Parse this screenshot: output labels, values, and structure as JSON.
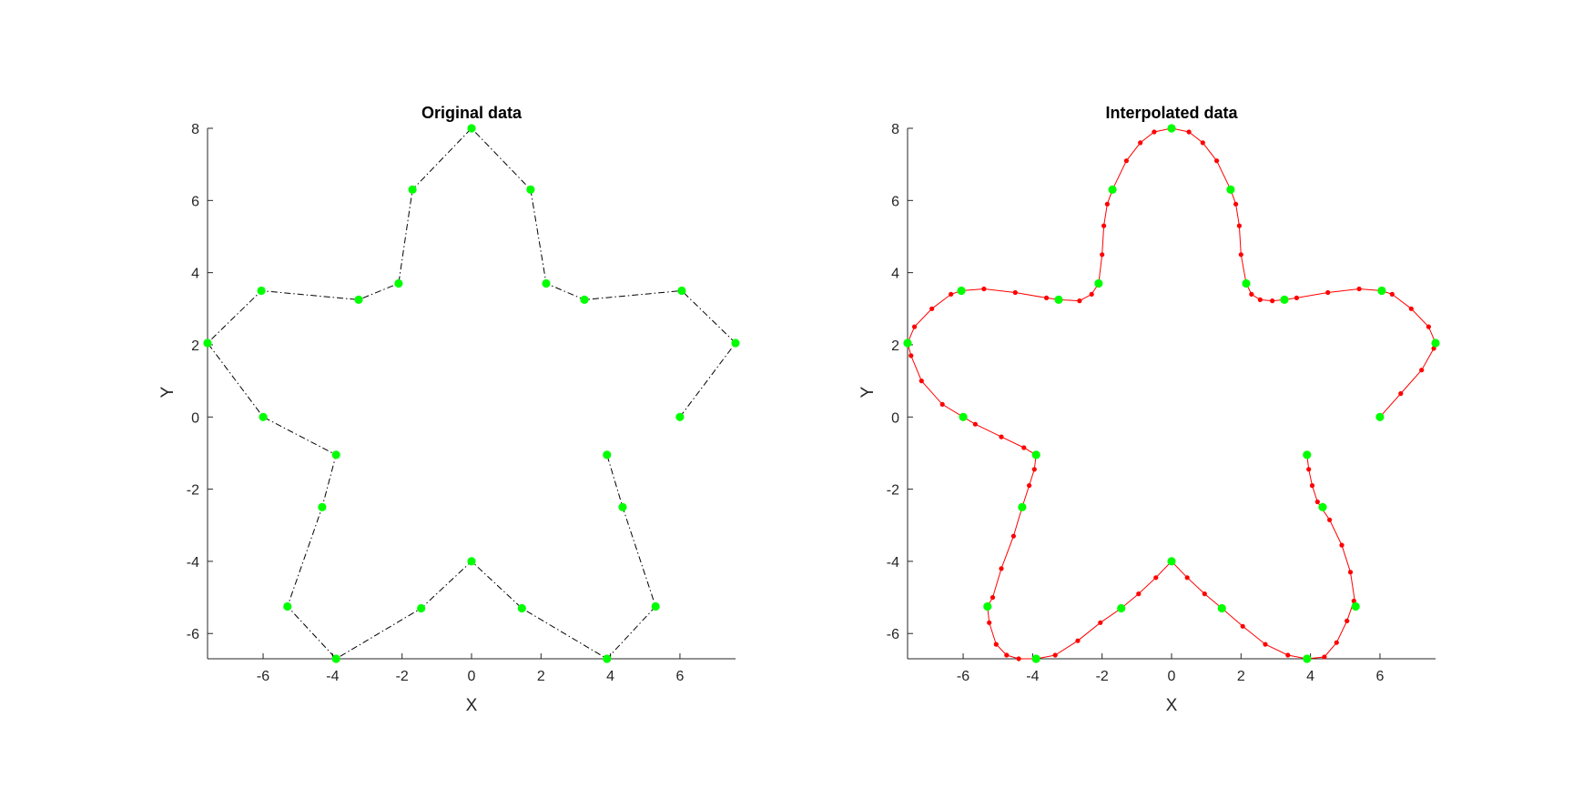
{
  "colors": {
    "marker_green": "#00ff00",
    "dashdot_black": "#000000",
    "interp_red": "#ff0000",
    "axis": "#262626"
  },
  "chart_data": [
    {
      "type": "line",
      "title": "Original data",
      "xlabel": "X",
      "ylabel": "Y",
      "xlim": [
        -7.6,
        7.6
      ],
      "ylim": [
        -6.7,
        8
      ],
      "xticks": [
        "-6",
        "-4",
        "-2",
        "0",
        "2",
        "4",
        "6"
      ],
      "yticks": [
        "-6",
        "-4",
        "-2",
        "0",
        "2",
        "4",
        "6",
        "8"
      ],
      "grid": false,
      "series": [
        {
          "line_style": "dash-dot",
          "line_color": "#000000",
          "marker_color": "#00ff00",
          "x": [
            6.0,
            7.6,
            6.05,
            3.25,
            2.15,
            1.7,
            0.0,
            -1.7,
            -2.1,
            -3.25,
            -6.05,
            -7.6,
            -6.0,
            -3.9,
            -4.3,
            -5.3,
            -3.9,
            -1.45,
            0.0,
            1.45,
            3.9,
            5.3,
            4.35,
            3.9
          ],
          "y": [
            0.0,
            2.05,
            3.5,
            3.25,
            3.7,
            6.3,
            8.0,
            6.3,
            3.7,
            3.25,
            3.5,
            2.05,
            0.0,
            -1.05,
            -2.5,
            -5.25,
            -6.7,
            -5.3,
            -4.0,
            -5.3,
            -6.7,
            -5.25,
            -2.5,
            -1.05
          ]
        }
      ]
    },
    {
      "type": "line",
      "title": "Interpolated data",
      "xlabel": "X",
      "ylabel": "Y",
      "xlim": [
        -7.6,
        7.6
      ],
      "ylim": [
        -6.7,
        8
      ],
      "xticks": [
        "-6",
        "-4",
        "-2",
        "0",
        "2",
        "4",
        "6"
      ],
      "yticks": [
        "-6",
        "-4",
        "-2",
        "0",
        "2",
        "4",
        "6",
        "8"
      ],
      "grid": false,
      "series": [
        {
          "line_style": "solid",
          "line_color": "#ff0000",
          "marker_color": "#ff0000",
          "x": [
            6.0,
            6.6,
            7.2,
            7.55,
            7.6,
            7.4,
            6.9,
            6.35,
            6.05,
            5.4,
            4.5,
            3.6,
            3.25,
            2.9,
            2.55,
            2.3,
            2.15,
            2.0,
            1.95,
            1.85,
            1.7,
            1.3,
            0.9,
            0.5,
            0.0,
            -0.5,
            -0.9,
            -1.3,
            -1.7,
            -1.85,
            -1.95,
            -2.0,
            -2.1,
            -2.3,
            -2.65,
            -3.25,
            -3.6,
            -4.5,
            -5.4,
            -6.05,
            -6.35,
            -6.9,
            -7.4,
            -7.6,
            -7.5,
            -7.2,
            -6.6,
            -6.0,
            -5.65,
            -4.9,
            -4.25,
            -3.9,
            -3.95,
            -4.1,
            -4.3,
            -4.55,
            -4.9,
            -5.15,
            -5.3,
            -5.25,
            -5.05,
            -4.75,
            -4.4,
            -3.9,
            -3.35,
            -2.7,
            -2.05,
            -1.45,
            -0.95,
            -0.45,
            0.0,
            0.45,
            0.95,
            1.45,
            2.05,
            2.7,
            3.35,
            3.9,
            4.4,
            4.75,
            5.05,
            5.25,
            5.3,
            5.15,
            4.9,
            4.55,
            4.3,
            4.2,
            4.05,
            3.95,
            3.9
          ],
          "y": [
            0.0,
            0.65,
            1.3,
            1.9,
            2.05,
            2.5,
            3.0,
            3.4,
            3.5,
            3.55,
            3.45,
            3.3,
            3.25,
            3.22,
            3.25,
            3.4,
            3.7,
            4.5,
            5.3,
            5.9,
            6.3,
            7.1,
            7.6,
            7.9,
            8.0,
            7.9,
            7.6,
            7.1,
            6.3,
            5.9,
            5.3,
            4.5,
            3.7,
            3.4,
            3.22,
            3.25,
            3.3,
            3.45,
            3.55,
            3.5,
            3.4,
            3.0,
            2.5,
            2.05,
            1.7,
            1.0,
            0.35,
            0.0,
            -0.2,
            -0.55,
            -0.85,
            -1.05,
            -1.45,
            -1.9,
            -2.5,
            -3.3,
            -4.2,
            -5.0,
            -5.25,
            -5.7,
            -6.3,
            -6.6,
            -6.7,
            -6.7,
            -6.6,
            -6.2,
            -5.7,
            -5.3,
            -4.9,
            -4.45,
            -4.0,
            -4.45,
            -4.9,
            -5.3,
            -5.8,
            -6.3,
            -6.6,
            -6.7,
            -6.65,
            -6.25,
            -5.65,
            -5.1,
            -5.25,
            -4.3,
            -3.55,
            -2.85,
            -2.5,
            -2.35,
            -1.9,
            -1.45,
            -1.05
          ]
        },
        {
          "line_style": "none",
          "marker_color": "#00ff00",
          "x": [
            6.0,
            7.6,
            6.05,
            3.25,
            2.15,
            1.7,
            0.0,
            -1.7,
            -2.1,
            -3.25,
            -6.05,
            -7.6,
            -6.0,
            -3.9,
            -4.3,
            -5.3,
            -3.9,
            -1.45,
            0.0,
            1.45,
            3.9,
            5.3,
            4.35,
            3.9
          ],
          "y": [
            0.0,
            2.05,
            3.5,
            3.25,
            3.7,
            6.3,
            8.0,
            6.3,
            3.7,
            3.25,
            3.5,
            2.05,
            0.0,
            -1.05,
            -2.5,
            -5.25,
            -6.7,
            -5.3,
            -4.0,
            -5.3,
            -6.7,
            -5.25,
            -2.5,
            -1.05
          ]
        }
      ]
    }
  ]
}
